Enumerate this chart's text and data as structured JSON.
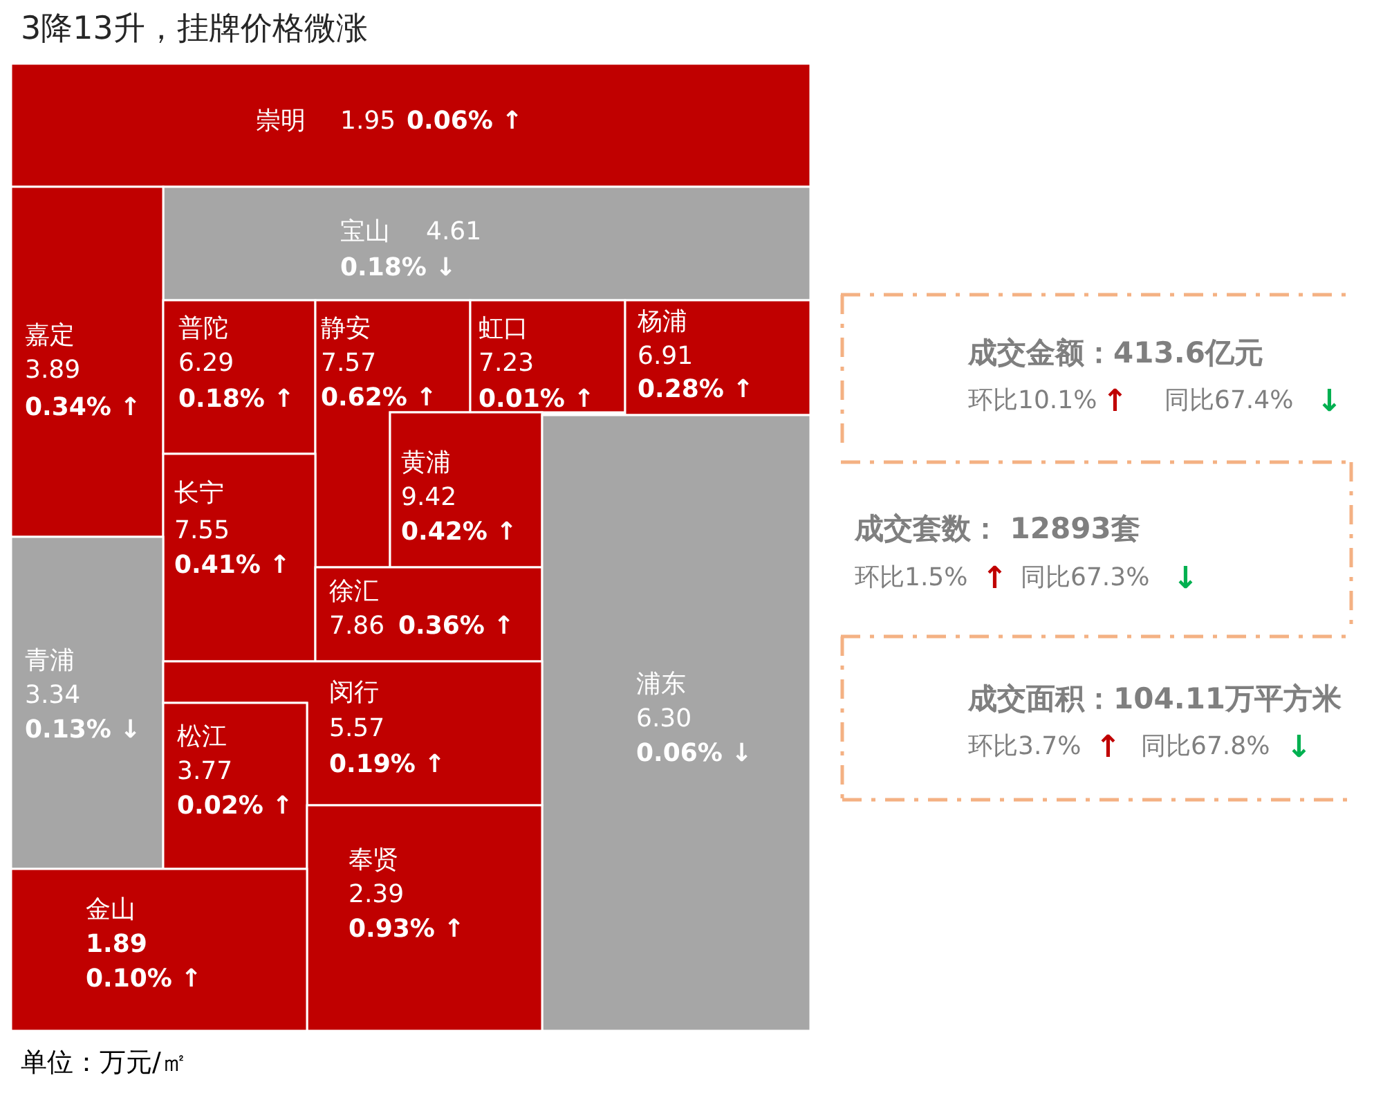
{
  "chart_data": [
    {
      "type": "other",
      "title": "3降13升，挂牌价格微涨",
      "categories": [
        "崇明",
        "宝山",
        "嘉定",
        "普陀",
        "静安",
        "虹口",
        "杨浦",
        "黄浦",
        "长宁",
        "青浦",
        "徐汇",
        "浦东",
        "闵行",
        "松江",
        "奉贤",
        "金山"
      ],
      "series": [
        {
          "values": [
            1.95,
            4.61,
            3.89,
            6.29,
            7.57,
            7.23,
            6.91,
            9.42,
            7.55,
            3.34,
            7.86,
            6.3,
            5.57,
            3.77,
            2.39,
            1.89
          ],
          "value_labels": [
            "1.95",
            "4.61",
            "3.89",
            "6.29",
            "7.57",
            "7.23",
            "6.91",
            "9.42",
            "7.55",
            "3.34",
            "7.86",
            "6.30",
            "5.57",
            "3.77",
            "2.39",
            "1.89"
          ],
          "colors": [
            "#c00000",
            "#a6a6a6",
            "#c00000",
            "#c00000",
            "#c00000",
            "#c00000",
            "#c00000",
            "#c00000",
            "#c00000",
            "#a6a6a6",
            "#c00000",
            "#a6a6a6",
            "#c00000",
            "#c00000",
            "#c00000",
            "#c00000"
          ]
        },
        {
          "values": [
            0.06,
            0.18,
            0.34,
            0.18,
            0.62,
            0.01,
            0.28,
            0.42,
            0.41,
            0.13,
            0.36,
            0.06,
            0.19,
            0.02,
            0.93,
            0.1
          ],
          "value_labels": [
            "0.06% ↑",
            "0.18% ↓",
            "0.34% ↑",
            "0.18% ↑",
            "0.62% ↑",
            "0.01% ↑",
            "0.28% ↑",
            "0.42% ↑",
            "0.41% ↑",
            "0.13% ↓",
            "0.36% ↑",
            "0.06% ↓",
            "0.19% ↑",
            "0.02% ↑",
            "0.93% ↑",
            "0.10% ↑"
          ]
        }
      ],
      "annotations": [
        "单位：万元/㎡"
      ]
    },
    {
      "type": "other",
      "annotations": [
        "成交金额：413.6亿元",
        "环比10.1%",
        "↑",
        "同比67.4%",
        "↓",
        "成交套数： 12893套",
        "环比1.5%",
        "↑",
        "同比67.3%",
        "↓",
        "成交面积：104.11万平方米",
        "环比3.7%",
        "↑",
        "同比67.8%",
        "↓"
      ]
    }
  ]
}
